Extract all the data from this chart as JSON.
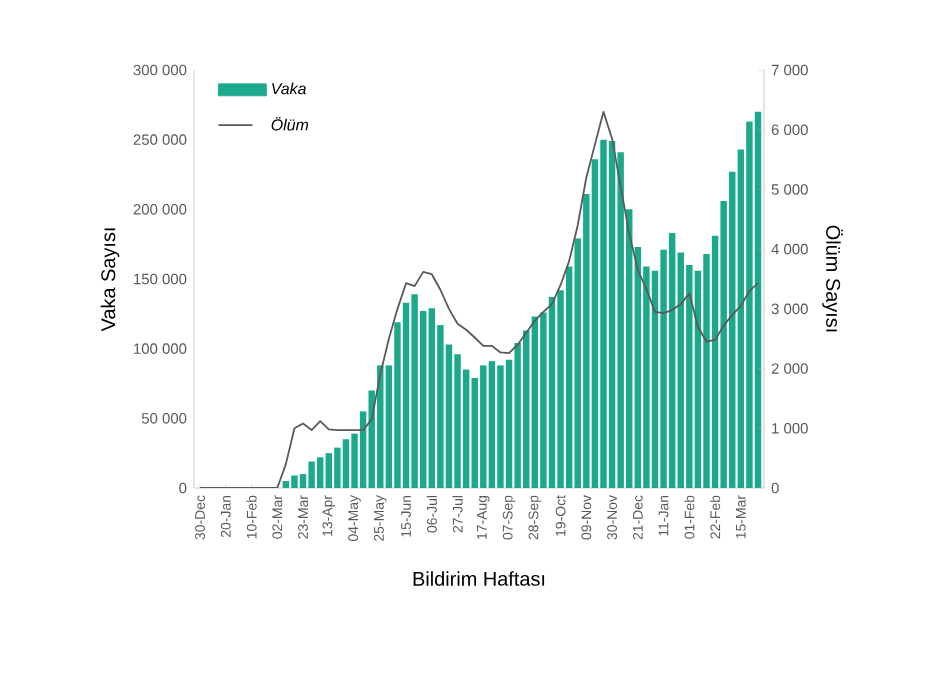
{
  "chart_data": {
    "type": "bar",
    "categories": [
      "30-Dec",
      null,
      null,
      "20-Jan",
      null,
      null,
      "10-Feb",
      null,
      null,
      "02-Mar",
      null,
      null,
      "23-Mar",
      null,
      null,
      "13-Apr",
      null,
      null,
      "04-May",
      null,
      null,
      "25-May",
      null,
      null,
      "15-Jun",
      null,
      null,
      "06-Jul",
      null,
      null,
      "27-Jul",
      null,
      null,
      "17-Aug",
      null,
      null,
      "07-Sep",
      null,
      null,
      "28-Sep",
      null,
      null,
      "19-Oct",
      null,
      null,
      "09-Nov",
      null,
      null,
      "30-Nov",
      null,
      null,
      "21-Dec",
      null,
      null,
      "11-Jan",
      null,
      null,
      "01-Feb",
      null,
      null,
      "22-Feb",
      null,
      null,
      "15-Mar",
      null,
      null
    ],
    "series": [
      {
        "name": "Vaka",
        "color": "#1ca98b",
        "values": [
          0,
          0,
          0,
          0,
          0,
          0,
          0,
          0,
          0,
          0,
          5000,
          9000,
          10000,
          19000,
          22000,
          25000,
          29000,
          35000,
          39000,
          55000,
          70000,
          88000,
          88000,
          119000,
          133000,
          139000,
          127000,
          129000,
          117000,
          103000,
          96000,
          85000,
          79000,
          88000,
          91000,
          88000,
          92000,
          104000,
          113000,
          123000,
          126000,
          137000,
          142000,
          159000,
          179000,
          211000,
          236000,
          250000,
          249000,
          241000,
          200000,
          173000,
          159000,
          156000,
          171000,
          183000,
          169000,
          160000,
          156000,
          168000,
          181000,
          206000,
          227000,
          243000,
          263000,
          270000
        ]
      },
      {
        "name": "Ölüm",
        "type": "line",
        "axis": "y2",
        "color": "#595959",
        "values": [
          0,
          0,
          0,
          0,
          0,
          0,
          0,
          0,
          0,
          0,
          400,
          1000,
          1080,
          970,
          1120,
          980,
          970,
          970,
          970,
          970,
          1150,
          1900,
          2500,
          3000,
          3430,
          3380,
          3620,
          3580,
          3320,
          3000,
          2750,
          2650,
          2520,
          2380,
          2380,
          2270,
          2260,
          2400,
          2600,
          2800,
          2950,
          3080,
          3400,
          3800,
          4400,
          5200,
          5750,
          6300,
          5850,
          5050,
          4260,
          3650,
          3330,
          2950,
          2930,
          2980,
          3080,
          3260,
          2700,
          2450,
          2480,
          2720,
          2900,
          3050,
          3300,
          3430
        ]
      }
    ],
    "ylim": [
      0,
      300000
    ],
    "yticks": [
      0,
      {
        "value": 50000,
        "label": "50 000"
      },
      {
        "value": 100000,
        "label": "100 000"
      },
      {
        "value": 150000,
        "label": "150 000"
      },
      {
        "value": 200000,
        "label": "200 000"
      },
      {
        "value": 250000,
        "label": "250 000"
      },
      {
        "value": 300000,
        "label": "300 000"
      }
    ],
    "y2lim": [
      0,
      7000
    ],
    "y2ticks": [
      0,
      {
        "value": 1000,
        "label": "1 000"
      },
      {
        "value": 2000,
        "label": "2 000"
      },
      {
        "value": 3000,
        "label": "3 000"
      },
      {
        "value": 4000,
        "label": "4 000"
      },
      {
        "value": 5000,
        "label": "5 000"
      },
      {
        "value": 6000,
        "label": "6 000"
      },
      {
        "value": 7000,
        "label": "7 000"
      }
    ],
    "xlabel": "Bildirim Haftası",
    "ylabel": "Vaka Sayısı",
    "y2label": "Ölüm Sayısı",
    "legend": "top left"
  }
}
